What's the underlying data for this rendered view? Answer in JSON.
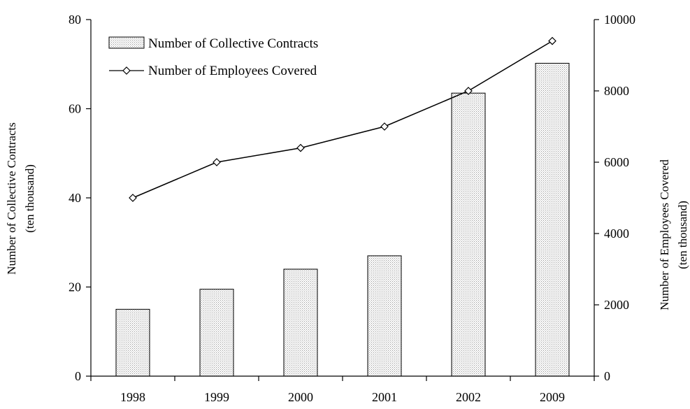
{
  "chart_data": {
    "type": "bar+line",
    "categories": [
      "1998",
      "1999",
      "2000",
      "2001",
      "2002",
      "2009"
    ],
    "series": [
      {
        "name": "Number of Collective Contracts",
        "type": "bar",
        "axis": "left",
        "values": [
          15,
          19.5,
          24,
          27,
          63.5,
          70.2
        ]
      },
      {
        "name": "Number of Employees Covered",
        "type": "line",
        "axis": "right",
        "values": [
          5000,
          6000,
          6400,
          7000,
          8000,
          9400
        ]
      }
    ],
    "y_left": {
      "label_line1": "Number of Collective Contracts",
      "label_line2": "(ten thousand)",
      "ylim": [
        0,
        80
      ],
      "ticks": [
        "0",
        "20",
        "40",
        "60",
        "80"
      ]
    },
    "y_right": {
      "label_line1": "Number of Employees Covered",
      "label_line2": "(ten thousand)",
      "ylim": [
        0,
        10000
      ],
      "ticks": [
        "0",
        "2000",
        "4000",
        "6000",
        "8000",
        "10000"
      ]
    },
    "legend_position": "top-left",
    "grid": false,
    "bar_fill": "#e8e8e8",
    "line_color": "#000000"
  }
}
